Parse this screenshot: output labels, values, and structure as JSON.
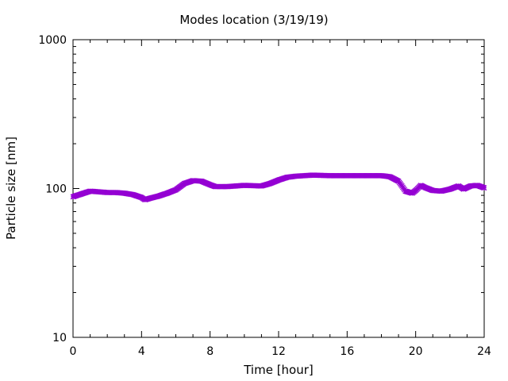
{
  "chart_data": {
    "type": "scatter",
    "title": "Modes location (3/19/19)",
    "xlabel": "Time [hour]",
    "ylabel": "Particle size [nm]",
    "xlim": [
      0,
      24
    ],
    "ylim": [
      10,
      1000
    ],
    "yscale": "log",
    "x_ticks": [
      0,
      4,
      8,
      12,
      16,
      20,
      24
    ],
    "x_tick_labels": [
      "0",
      "4",
      "8",
      "12",
      "16",
      "20",
      "24"
    ],
    "y_ticks": [
      10,
      100,
      1000
    ],
    "y_tick_labels": [
      "10",
      "100",
      "1000"
    ],
    "grid": false,
    "marker": "star",
    "color": "#9400D3",
    "profile": [
      [
        0,
        88
      ],
      [
        0.5,
        92
      ],
      [
        1,
        96
      ],
      [
        1.5,
        95
      ],
      [
        2,
        94
      ],
      [
        2.5,
        94
      ],
      [
        3,
        93
      ],
      [
        3.5,
        91
      ],
      [
        4,
        87
      ],
      [
        4.2,
        84
      ],
      [
        4.5,
        86
      ],
      [
        5,
        89
      ],
      [
        5.5,
        93
      ],
      [
        6,
        98
      ],
      [
        6.5,
        108
      ],
      [
        7,
        113
      ],
      [
        7.5,
        112
      ],
      [
        8,
        106
      ],
      [
        8.3,
        103
      ],
      [
        9,
        103
      ],
      [
        10,
        105
      ],
      [
        11,
        104
      ],
      [
        11.5,
        108
      ],
      [
        12,
        114
      ],
      [
        12.5,
        119
      ],
      [
        13,
        121
      ],
      [
        14,
        123
      ],
      [
        15,
        122
      ],
      [
        16,
        122
      ],
      [
        17,
        122
      ],
      [
        18,
        122
      ],
      [
        18.5,
        120
      ],
      [
        19,
        112
      ],
      [
        19.2,
        104
      ],
      [
        19.4,
        96
      ],
      [
        19.8,
        93
      ],
      [
        20.0,
        97
      ],
      [
        20.3,
        105
      ],
      [
        20.6,
        101
      ],
      [
        21,
        97
      ],
      [
        21.5,
        96
      ],
      [
        22,
        99
      ],
      [
        22.5,
        104
      ],
      [
        22.8,
        99
      ],
      [
        23.2,
        104
      ],
      [
        23.6,
        105
      ],
      [
        24,
        101
      ]
    ]
  }
}
